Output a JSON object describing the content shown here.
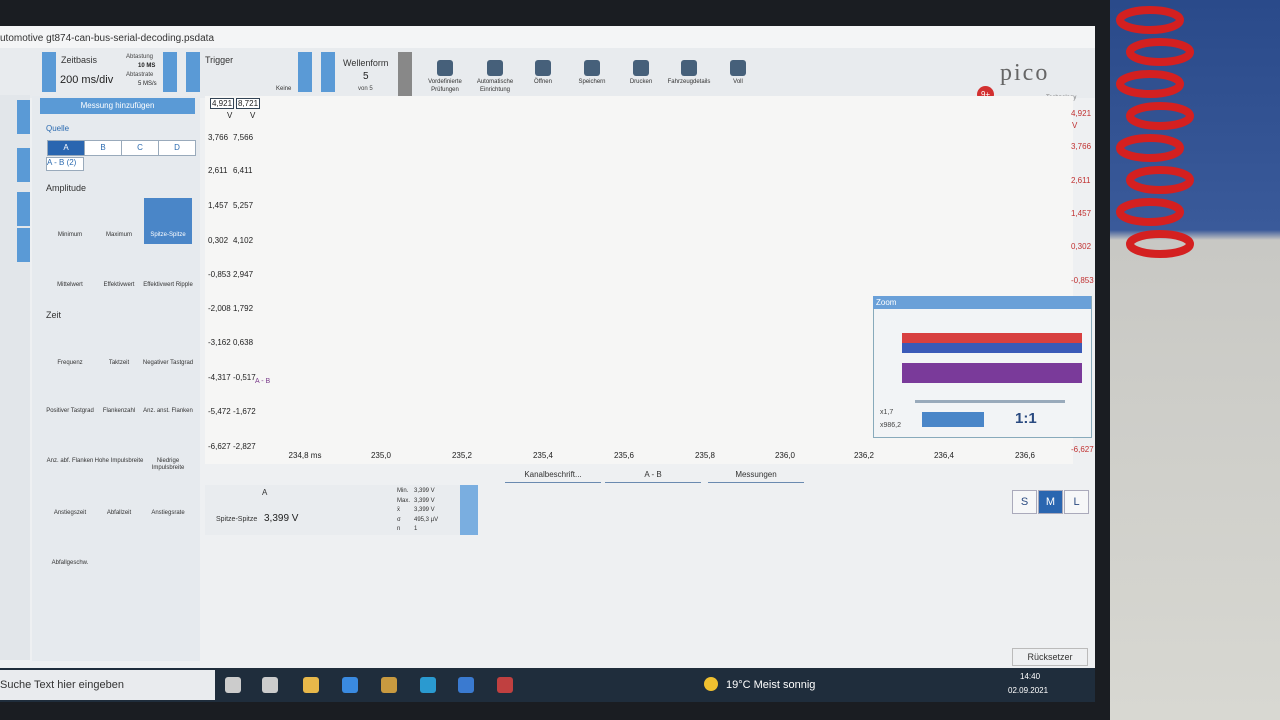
{
  "window": {
    "title": "utomotive gt874-can-bus-serial-decoding.psdata"
  },
  "toolbar": {
    "timebase": {
      "label": "Zeitbasis",
      "value": "200 ms/div",
      "sampling_label": "Abtastung",
      "sampling": "10 MS",
      "rate_label": "Abtastrate",
      "rate": "5 MS/s"
    },
    "trigger": {
      "label": "Trigger",
      "mode": "Keine"
    },
    "waveform": {
      "label": "Wellenform",
      "value": "5",
      "of": "von 5"
    },
    "buttons": [
      "Vordefinierte Prüfungen",
      "Automatische Einrichtung",
      "Öffnen",
      "Speichern",
      "Drucken",
      "Fahrzeugdetails",
      "Voll"
    ],
    "badge": "9+",
    "logo": "pico",
    "logo_sub": "Technology"
  },
  "sidebar": {
    "add": "Messung hinzufügen",
    "source_label": "Quelle",
    "channels": [
      "A",
      "B",
      "C",
      "D"
    ],
    "source": "A - B (2)",
    "sections": [
      {
        "title": "Amplitude",
        "items": [
          "Minimum",
          "Maximum",
          "Spitze-Spitze",
          "Mittelwert",
          "Effektivwert",
          "Effektivwert Ripple"
        ]
      },
      {
        "title": "Zeit",
        "items": [
          "Frequenz",
          "Taktzeit",
          "Negativer Tastgrad",
          "Positiver Tastgrad",
          "Flankenzahl",
          "Anz. anst. Flanken",
          "Anz. abf. Flanken",
          "Hohe Impulsbreite",
          "Niedrige Impulsbreite",
          "Anstiegszeit",
          "Abfallzeit",
          "Anstiegsrate",
          "Abfallgeschw."
        ]
      }
    ]
  },
  "scope": {
    "left_top": [
      "4,921",
      "8,721"
    ],
    "units": [
      "V",
      "V"
    ],
    "left_axis": [
      [
        "3,766",
        "7,566"
      ],
      [
        "2,611",
        "6,411"
      ],
      [
        "1,457",
        "5,257"
      ],
      [
        "0,302",
        "4,102"
      ],
      [
        "-0,853",
        "2,947"
      ],
      [
        "-2,008",
        "1,792"
      ],
      [
        "-3,162",
        "0,638"
      ],
      [
        "-4,317",
        "-0,517"
      ],
      [
        "-5,472",
        "-1,672"
      ],
      [
        "-6,627",
        "-2,827"
      ]
    ],
    "right_axis": [
      "4,921",
      "3,766",
      "2,611",
      "1,457",
      "0,302",
      "-0,853",
      null,
      null,
      null,
      null,
      "-6,627"
    ],
    "right_unit": "V",
    "x_axis": [
      "234,8 ms",
      "235,0",
      "235,2",
      "235,4",
      "235,6",
      "235,8",
      "236,0",
      "236,2",
      "236,4",
      "236,6"
    ],
    "channel_label": "A - B"
  },
  "tabs": [
    "Kanalbeschrift...",
    "A - B",
    "Messungen"
  ],
  "measurement": {
    "channel": "A",
    "name": "Spitze-Spitze",
    "value": "3,399 V",
    "stats": [
      [
        "Min.",
        "3,399 V"
      ],
      [
        "Max.",
        "3,399 V"
      ],
      [
        "x̄",
        "3,399 V"
      ],
      [
        "σ",
        "495,3 µV"
      ],
      [
        "n",
        "1"
      ]
    ]
  },
  "zoom": {
    "title": "Zoom",
    "x_factor": "x1,7",
    "y_factor": "x986,2",
    "reset": "1:1"
  },
  "sizes": [
    "S",
    "M",
    "L"
  ],
  "reset": "Rücksetzer",
  "taskbar": {
    "search": "Suche Text hier eingeben",
    "weather": "19°C  Meist sonnig",
    "time": "14:40",
    "date": "02.09.2021"
  }
}
